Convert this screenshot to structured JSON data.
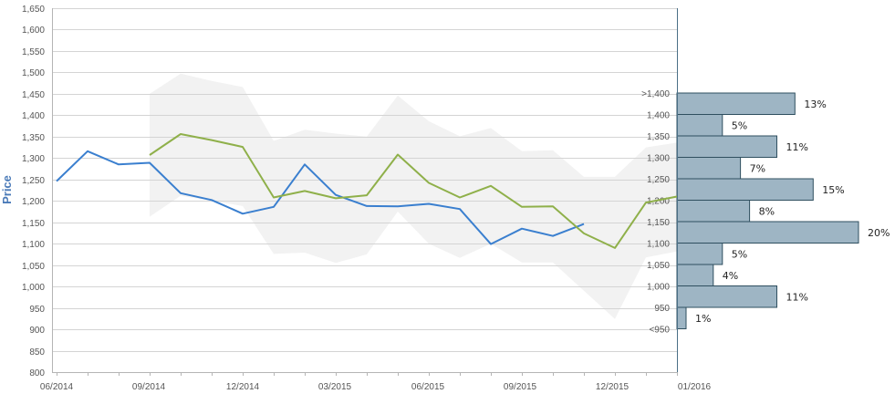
{
  "chart_data": {
    "type": "line",
    "ylabel": "Price",
    "ylim": [
      800,
      1650
    ],
    "y_ticks": [
      800,
      850,
      900,
      950,
      1000,
      1050,
      1100,
      1150,
      1200,
      1250,
      1300,
      1350,
      1400,
      1450,
      1500,
      1550,
      1600,
      1650
    ],
    "y_tick_labels": [
      "800",
      "850",
      "900",
      "950",
      "1,000",
      "1,050",
      "1,100",
      "1,150",
      "1,200",
      "1,250",
      "1,300",
      "1,350",
      "1,400",
      "1,450",
      "1,500",
      "1,550",
      "1,600",
      "1,650"
    ],
    "x_tick_labels": [
      "06/2014",
      "09/2014",
      "12/2014",
      "03/2015",
      "06/2015",
      "09/2015",
      "12/2015",
      "01/2016"
    ],
    "months": 20,
    "series": [
      {
        "color": "#3a7fcf",
        "x": [
          0,
          1,
          2,
          3,
          4,
          5,
          6,
          7,
          8,
          9,
          10,
          11,
          12,
          13,
          14,
          15,
          16,
          17
        ],
        "values": [
          1246,
          1316,
          1285,
          1289,
          1218,
          1202,
          1170,
          1186,
          1285,
          1214,
          1188,
          1187,
          1193,
          1181,
          1099,
          1135,
          1118,
          1146
        ]
      },
      {
        "color": "#8fb04a",
        "x": [
          3,
          4,
          5,
          6,
          7,
          8,
          9,
          10,
          11,
          12,
          13,
          14,
          15,
          16,
          17,
          18,
          19,
          20
        ],
        "values": [
          1307,
          1356,
          1342,
          1326,
          1208,
          1223,
          1206,
          1213,
          1308,
          1242,
          1208,
          1235,
          1186,
          1187,
          1124,
          1090,
          1196,
          1210
        ]
      }
    ],
    "band": {
      "color": "#f2f2f2",
      "x": [
        3,
        4,
        5,
        6,
        7,
        8,
        9,
        10,
        11,
        12,
        13,
        14,
        15,
        16,
        17,
        18,
        19,
        20
      ],
      "upper": [
        1450,
        1497,
        1480,
        1466,
        1340,
        1366,
        1357,
        1350,
        1446,
        1386,
        1351,
        1370,
        1316,
        1318,
        1256,
        1256,
        1325,
        1336
      ],
      "lower": [
        1163,
        1212,
        1200,
        1188,
        1076,
        1079,
        1055,
        1075,
        1175,
        1100,
        1067,
        1100,
        1056,
        1056,
        990,
        924,
        1068,
        1082
      ]
    },
    "distribution": {
      "type": "bar",
      "orientation": "horizontal",
      "color": "#9eb5c4",
      "bins": [
        {
          "label": ">1,400",
          "value": 13,
          "text": "13%"
        },
        {
          "label": "1,400",
          "value": 5,
          "text": "5%"
        },
        {
          "label": "1,350",
          "value": 11,
          "text": "11%"
        },
        {
          "label": "1,300",
          "value": 7,
          "text": "7%"
        },
        {
          "label": "1,250",
          "value": 15,
          "text": "15%"
        },
        {
          "label": "1,200",
          "value": 8,
          "text": "8%"
        },
        {
          "label": "1,150",
          "value": 20,
          "text": "20%"
        },
        {
          "label": "1,100",
          "value": 5,
          "text": "5%"
        },
        {
          "label": "1,050",
          "value": 4,
          "text": "4%"
        },
        {
          "label": "1,000",
          "value": 11,
          "text": "11%"
        },
        {
          "label": "950",
          "value": 1,
          "text": "1%"
        },
        {
          "label": "<950",
          "value": 0,
          "text": ""
        }
      ]
    }
  }
}
